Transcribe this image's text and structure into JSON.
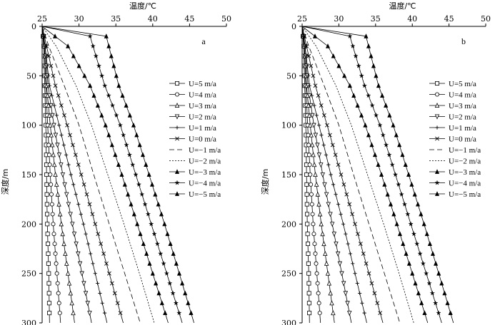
{
  "chart_data": [
    {
      "type": "line",
      "panel_label": "a",
      "xlabel": "温度/℃",
      "ylabel": "深度/m",
      "xlim": [
        25,
        50
      ],
      "ylim": [
        0,
        300
      ],
      "x_ticks": [
        "25",
        "30",
        "35",
        "40",
        "45",
        "50"
      ],
      "y_ticks": [
        "0",
        "50",
        "100",
        "150",
        "200",
        "250",
        "300"
      ],
      "grid": false,
      "legend_placement": "right",
      "series": [
        {
          "name": "U=5 m/a",
          "values": [
            [
              25,
              0
            ],
            [
              25.2,
              20
            ],
            [
              25.35,
              60
            ],
            [
              25.5,
              100
            ],
            [
              25.6,
              150
            ],
            [
              25.7,
              200
            ],
            [
              25.9,
              250
            ],
            [
              26.0,
              300
            ]
          ]
        },
        {
          "name": "U=4 m/a",
          "values": [
            [
              25,
              0
            ],
            [
              25.3,
              20
            ],
            [
              25.5,
              60
            ],
            [
              25.75,
              100
            ],
            [
              26.1,
              150
            ],
            [
              26.5,
              200
            ],
            [
              27.0,
              250
            ],
            [
              27.5,
              300
            ]
          ]
        },
        {
          "name": "U=3 m/a",
          "values": [
            [
              25,
              0
            ],
            [
              25.3,
              20
            ],
            [
              25.6,
              60
            ],
            [
              26.1,
              100
            ],
            [
              26.8,
              150
            ],
            [
              27.6,
              200
            ],
            [
              28.5,
              250
            ],
            [
              29.4,
              300
            ]
          ]
        },
        {
          "name": "U=2 m/a",
          "values": [
            [
              25,
              0
            ],
            [
              25.4,
              20
            ],
            [
              25.8,
              60
            ],
            [
              26.6,
              100
            ],
            [
              27.8,
              150
            ],
            [
              29.1,
              200
            ],
            [
              30.4,
              250
            ],
            [
              31.7,
              300
            ]
          ]
        },
        {
          "name": "U=1 m/a",
          "values": [
            [
              25,
              0
            ],
            [
              25.4,
              20
            ],
            [
              26.0,
              60
            ],
            [
              27.3,
              100
            ],
            [
              28.9,
              150
            ],
            [
              30.6,
              200
            ],
            [
              32.2,
              250
            ],
            [
              33.8,
              300
            ]
          ]
        },
        {
          "name": "U=0 m/a",
          "values": [
            [
              25,
              0
            ],
            [
              25.6,
              20
            ],
            [
              26.8,
              60
            ],
            [
              28.4,
              100
            ],
            [
              30.3,
              150
            ],
            [
              32.2,
              200
            ],
            [
              34.1,
              250
            ],
            [
              36.0,
              300
            ]
          ]
        },
        {
          "name": "U=−1 m/a",
          "values": [
            [
              25,
              0
            ],
            [
              25.9,
              20
            ],
            [
              28.0,
              60
            ],
            [
              30.0,
              100
            ],
            [
              32.0,
              150
            ],
            [
              34.1,
              200
            ],
            [
              36.2,
              250
            ],
            [
              38.3,
              300
            ]
          ]
        },
        {
          "name": "U=−2 m/a",
          "values": [
            [
              25,
              0
            ],
            [
              26.9,
              20
            ],
            [
              29.6,
              60
            ],
            [
              31.7,
              100
            ],
            [
              33.9,
              150
            ],
            [
              36.1,
              200
            ],
            [
              38.2,
              250
            ],
            [
              40.2,
              300
            ]
          ]
        },
        {
          "name": "U=−3 m/a",
          "values": [
            [
              25,
              0
            ],
            [
              28.5,
              20
            ],
            [
              31.5,
              60
            ],
            [
              33.6,
              100
            ],
            [
              35.8,
              150
            ],
            [
              37.9,
              200
            ],
            [
              40.0,
              250
            ],
            [
              42.1,
              300
            ]
          ]
        },
        {
          "name": "U=−4 m/a",
          "values": [
            [
              25,
              0
            ],
            [
              31.5,
              10
            ],
            [
              33.5,
              60
            ],
            [
              35.6,
              100
            ],
            [
              37.7,
              150
            ],
            [
              39.8,
              200
            ],
            [
              41.9,
              250
            ],
            [
              44.0,
              300
            ]
          ]
        },
        {
          "name": "U=−5 m/a",
          "values": [
            [
              25,
              0
            ],
            [
              33.7,
              10
            ],
            [
              35.4,
              60
            ],
            [
              37.4,
              100
            ],
            [
              39.5,
              150
            ],
            [
              41.6,
              200
            ],
            [
              43.6,
              250
            ],
            [
              45.6,
              300
            ]
          ]
        }
      ]
    },
    {
      "type": "line",
      "panel_label": "b",
      "xlabel": "温度/℃",
      "ylabel": "深度/m",
      "xlim": [
        25,
        50
      ],
      "ylim": [
        0,
        300
      ],
      "x_ticks": [
        "25",
        "30",
        "35",
        "40",
        "45",
        "50"
      ],
      "y_ticks": [
        "0",
        "50",
        "100",
        "150",
        "200",
        "250",
        "300"
      ],
      "grid": false,
      "legend_placement": "right",
      "series": [
        {
          "name": "U=5 m/a",
          "values": [
            [
              25,
              0
            ],
            [
              25.2,
              20
            ],
            [
              25.35,
              60
            ],
            [
              25.5,
              100
            ],
            [
              25.6,
              150
            ],
            [
              25.7,
              200
            ],
            [
              25.9,
              250
            ],
            [
              26.0,
              300
            ]
          ]
        },
        {
          "name": "U=4 m/a",
          "values": [
            [
              25,
              0
            ],
            [
              25.3,
              20
            ],
            [
              25.5,
              60
            ],
            [
              25.75,
              100
            ],
            [
              26.1,
              150
            ],
            [
              26.5,
              200
            ],
            [
              27.0,
              250
            ],
            [
              27.5,
              300
            ]
          ]
        },
        {
          "name": "U=3 m/a",
          "values": [
            [
              25,
              0
            ],
            [
              25.3,
              20
            ],
            [
              25.6,
              60
            ],
            [
              26.1,
              100
            ],
            [
              26.8,
              150
            ],
            [
              27.6,
              200
            ],
            [
              28.5,
              250
            ],
            [
              29.4,
              300
            ]
          ]
        },
        {
          "name": "U=2 m/a",
          "values": [
            [
              25,
              0
            ],
            [
              25.4,
              20
            ],
            [
              25.8,
              60
            ],
            [
              26.6,
              100
            ],
            [
              27.8,
              150
            ],
            [
              29.1,
              200
            ],
            [
              30.4,
              250
            ],
            [
              31.7,
              300
            ]
          ]
        },
        {
          "name": "U=1 m/a",
          "values": [
            [
              25,
              0
            ],
            [
              25.4,
              20
            ],
            [
              26.0,
              60
            ],
            [
              27.3,
              100
            ],
            [
              28.9,
              150
            ],
            [
              30.6,
              200
            ],
            [
              32.2,
              250
            ],
            [
              33.8,
              300
            ]
          ]
        },
        {
          "name": "U=0 m/a",
          "values": [
            [
              25,
              0
            ],
            [
              25.6,
              20
            ],
            [
              26.8,
              60
            ],
            [
              28.4,
              100
            ],
            [
              30.3,
              150
            ],
            [
              32.2,
              200
            ],
            [
              34.1,
              250
            ],
            [
              36.0,
              300
            ]
          ]
        },
        {
          "name": "U=−1 m/a",
          "values": [
            [
              25,
              0
            ],
            [
              25.9,
              20
            ],
            [
              28.0,
              60
            ],
            [
              30.0,
              100
            ],
            [
              32.0,
              150
            ],
            [
              34.1,
              200
            ],
            [
              36.2,
              250
            ],
            [
              38.3,
              300
            ]
          ]
        },
        {
          "name": "U=−2 m/a",
          "values": [
            [
              25,
              0
            ],
            [
              26.9,
              20
            ],
            [
              29.6,
              60
            ],
            [
              31.7,
              100
            ],
            [
              33.9,
              150
            ],
            [
              36.1,
              200
            ],
            [
              38.2,
              250
            ],
            [
              40.2,
              300
            ]
          ]
        },
        {
          "name": "U=−3 m/a",
          "values": [
            [
              25,
              0
            ],
            [
              28.5,
              20
            ],
            [
              31.5,
              60
            ],
            [
              33.6,
              100
            ],
            [
              35.8,
              150
            ],
            [
              37.9,
              200
            ],
            [
              40.0,
              250
            ],
            [
              42.1,
              300
            ]
          ]
        },
        {
          "name": "U=−4 m/a",
          "values": [
            [
              25,
              0
            ],
            [
              31.5,
              10
            ],
            [
              33.5,
              60
            ],
            [
              35.6,
              100
            ],
            [
              37.7,
              150
            ],
            [
              39.8,
              200
            ],
            [
              41.9,
              250
            ],
            [
              44.0,
              300
            ]
          ]
        },
        {
          "name": "U=−5 m/a",
          "values": [
            [
              25,
              0
            ],
            [
              33.7,
              10
            ],
            [
              35.4,
              60
            ],
            [
              37.4,
              100
            ],
            [
              39.5,
              150
            ],
            [
              41.6,
              200
            ],
            [
              43.6,
              250
            ],
            [
              45.6,
              300
            ]
          ]
        }
      ]
    }
  ]
}
